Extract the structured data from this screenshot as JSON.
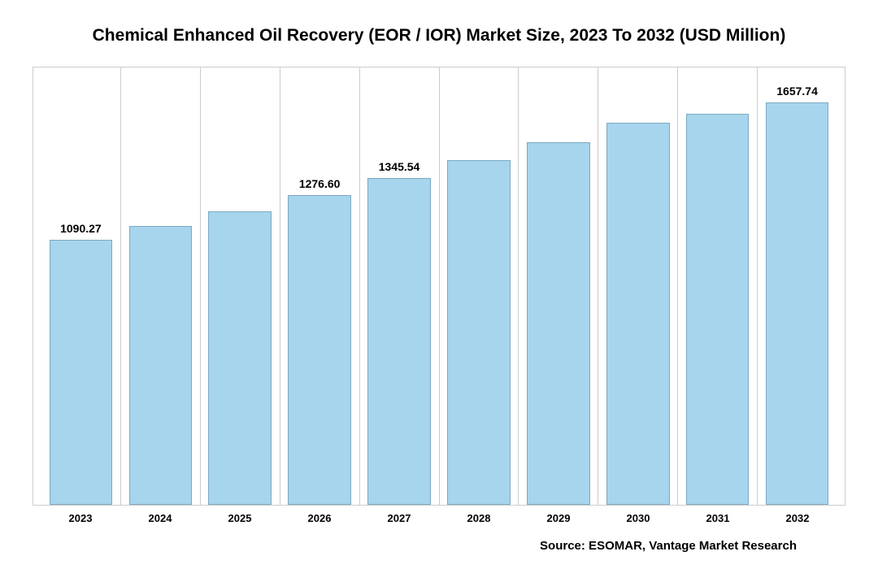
{
  "chart": {
    "type": "bar",
    "title": "Chemical Enhanced Oil Recovery (EOR / IOR) Market Size, 2023 To 2032 (USD Million)",
    "title_fontsize": 21,
    "source": "Source: ESOMAR, Vantage Market Research",
    "source_fontsize": 15,
    "categories": [
      "2023",
      "2024",
      "2025",
      "2026",
      "2027",
      "2028",
      "2029",
      "2030",
      "2031",
      "2032"
    ],
    "values": [
      1090.27,
      1149.0,
      1210.0,
      1276.6,
      1345.54,
      1418.0,
      1494.0,
      1574.0,
      1610.0,
      1657.74
    ],
    "visible_labels": [
      "1090.27",
      "",
      "",
      "1276.60",
      "1345.54",
      "",
      "",
      "",
      "",
      "1657.74"
    ],
    "bar_color": "#a6d5ed",
    "bar_border_color": "#7da9c0",
    "grid_color": "#cccccc",
    "background_color": "#ffffff",
    "xaxis_fontsize": 13,
    "label_fontsize": 14,
    "ymax": 1800,
    "bar_width_pct": 80
  }
}
